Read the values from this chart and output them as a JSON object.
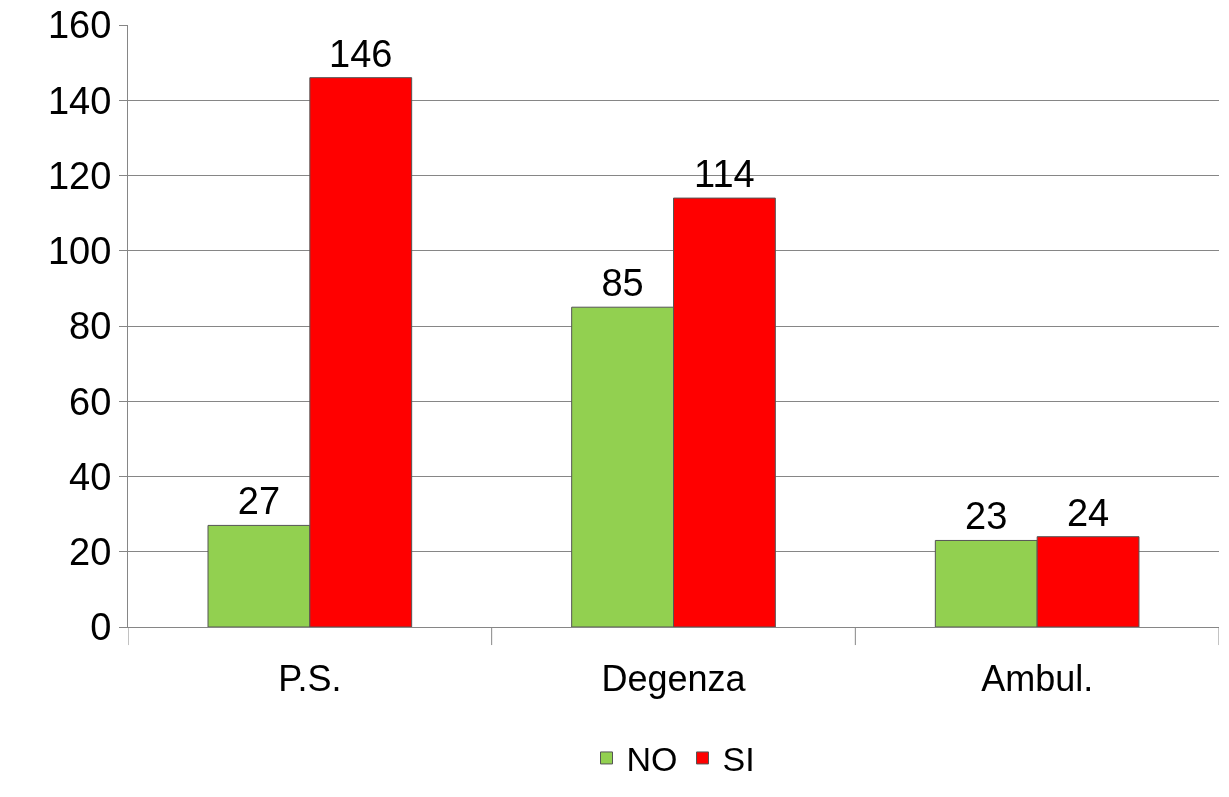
{
  "chart_data": {
    "type": "bar",
    "categories": [
      "P.S.",
      "Degenza",
      "Ambul."
    ],
    "series": [
      {
        "name": "NO",
        "color": "#92d050",
        "values": [
          27,
          85,
          23
        ]
      },
      {
        "name": "SI",
        "color": "#ff0000",
        "values": [
          146,
          114,
          24
        ]
      }
    ],
    "ylim": [
      0,
      160
    ],
    "yticks": [
      0,
      20,
      40,
      60,
      80,
      100,
      120,
      140,
      160
    ],
    "grid": "y",
    "legend": "bottom",
    "data_labels": true
  }
}
